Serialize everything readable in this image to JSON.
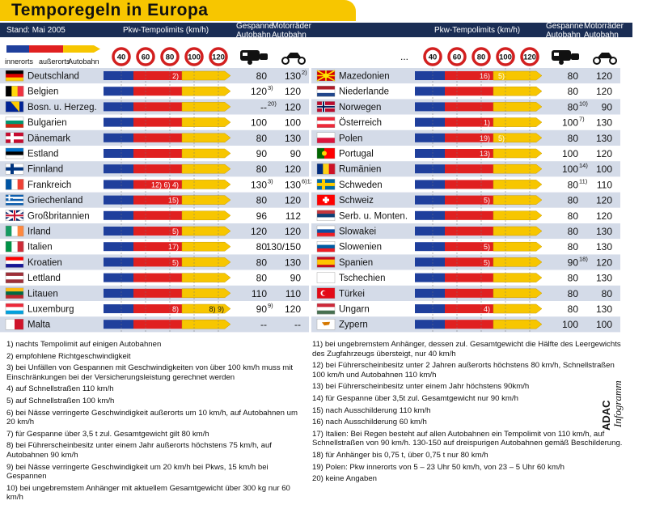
{
  "title": "Temporegeln in Europa",
  "header": {
    "stand": "Stand: Mai 2005",
    "pkw": "Pkw-Tempolimits (km/h)",
    "gespanne_1": "Gespanne",
    "gespanne_2": "Autobahn",
    "motorrad_1": "Motorräder",
    "motorrad_2": "Autobahn"
  },
  "legend": {
    "items": [
      "innerorts",
      "außerorts",
      "Autobahn"
    ],
    "dots": "...",
    "signs": [
      "40",
      "60",
      "80",
      "100",
      "120"
    ],
    "colors": {
      "innerorts": "#1f3f9c",
      "ausserorts": "#e02020",
      "autobahn": "#f7c600"
    }
  },
  "chart_data": {
    "type": "bar",
    "scale_signs": [
      40,
      60,
      80,
      100,
      120
    ],
    "left": [
      {
        "country": "Deutschland",
        "flag": "germany",
        "notes": "2)",
        "gespanne": "80",
        "motorrad": "130",
        "motorrad_note": "2)"
      },
      {
        "country": "Belgien",
        "flag": "belgium",
        "notes": "",
        "gespanne": "120",
        "gespanne_note": "3)",
        "motorrad": "120"
      },
      {
        "country": "Bosn. u. Herzeg.",
        "flag": "bosnia",
        "notes": "",
        "gespanne": "--",
        "gespanne_note": "20)",
        "motorrad": "120"
      },
      {
        "country": "Bulgarien",
        "flag": "bulgaria",
        "notes": "",
        "gespanne": "100",
        "motorrad": "100"
      },
      {
        "country": "Dänemark",
        "flag": "denmark",
        "notes": "",
        "gespanne": "80",
        "motorrad": "130"
      },
      {
        "country": "Estland",
        "flag": "estonia",
        "notes": "",
        "gespanne": "90",
        "motorrad": "90"
      },
      {
        "country": "Finnland",
        "flag": "finland",
        "notes": "",
        "gespanne": "80",
        "motorrad": "120"
      },
      {
        "country": "Frankreich",
        "flag": "france",
        "notes": "12) 6) 4)",
        "gespanne": "130",
        "gespanne_note": "3)",
        "motorrad": "130",
        "motorrad_note": "6)12)"
      },
      {
        "country": "Griechenland",
        "flag": "greece",
        "notes": "15)",
        "gespanne": "80",
        "motorrad": "120"
      },
      {
        "country": "Großbritannien",
        "flag": "uk",
        "notes": "",
        "gespanne": "96",
        "motorrad": "112"
      },
      {
        "country": "Irland",
        "flag": "ireland",
        "notes": "5)",
        "gespanne": "120",
        "motorrad": "120"
      },
      {
        "country": "Italien",
        "flag": "italy",
        "notes": "17)",
        "gespanne": "80",
        "motorrad": "130/150"
      },
      {
        "country": "Kroatien",
        "flag": "croatia",
        "notes": "5)",
        "gespanne": "80",
        "motorrad": "130"
      },
      {
        "country": "Lettland",
        "flag": "latvia",
        "notes": "",
        "gespanne": "80",
        "motorrad": "90"
      },
      {
        "country": "Litauen",
        "flag": "lithuania",
        "notes": "",
        "gespanne": "110",
        "motorrad": "110"
      },
      {
        "country": "Luxemburg",
        "flag": "luxembourg",
        "notes": "8)",
        "notes_end": "8) 9)",
        "gespanne": "90",
        "gespanne_note": "9)",
        "motorrad": "120"
      },
      {
        "country": "Malta",
        "flag": "malta",
        "notes": "",
        "gespanne": "--",
        "motorrad": "--"
      }
    ],
    "right": [
      {
        "country": "Mazedonien",
        "flag": "macedonia",
        "notes": "16)",
        "notes2": "5)",
        "gespanne": "80",
        "motorrad": "120"
      },
      {
        "country": "Niederlande",
        "flag": "netherlands",
        "notes": "",
        "gespanne": "80",
        "motorrad": "120"
      },
      {
        "country": "Norwegen",
        "flag": "norway",
        "notes": "",
        "gespanne": "80",
        "gespanne_note": "10)",
        "motorrad": "90"
      },
      {
        "country": "Österreich",
        "flag": "austria",
        "notes": "1)",
        "gespanne": "100",
        "gespanne_note": "7)",
        "motorrad": "130"
      },
      {
        "country": "Polen",
        "flag": "poland",
        "notes": "19)",
        "notes2": "5)",
        "gespanne": "80",
        "motorrad": "130"
      },
      {
        "country": "Portugal",
        "flag": "portugal",
        "notes": "13)",
        "gespanne": "100",
        "motorrad": "120"
      },
      {
        "country": "Rumänien",
        "flag": "romania",
        "notes": "",
        "gespanne": "100",
        "gespanne_note": "14)",
        "motorrad": "100"
      },
      {
        "country": "Schweden",
        "flag": "sweden",
        "notes": "",
        "gespanne": "80",
        "gespanne_note": "11)",
        "motorrad": "110"
      },
      {
        "country": "Schweiz",
        "flag": "switzerland",
        "notes": "5)",
        "gespanne": "80",
        "motorrad": "120"
      },
      {
        "country": "Serb. u. Monten.",
        "flag": "serbia",
        "notes": "",
        "gespanne": "80",
        "motorrad": "120"
      },
      {
        "country": "Slowakei",
        "flag": "slovakia",
        "notes": "",
        "gespanne": "80",
        "motorrad": "130"
      },
      {
        "country": "Slowenien",
        "flag": "slovenia",
        "notes": "5)",
        "gespanne": "80",
        "motorrad": "130"
      },
      {
        "country": "Spanien",
        "flag": "spain",
        "notes": "5)",
        "gespanne": "90",
        "gespanne_note": "18)",
        "motorrad": "120"
      },
      {
        "country": "Tschechien",
        "flag": "czech",
        "notes": "",
        "gespanne": "80",
        "motorrad": "130"
      },
      {
        "country": "Türkei",
        "flag": "turkey",
        "notes": "",
        "gespanne": "80",
        "motorrad": "80"
      },
      {
        "country": "Ungarn",
        "flag": "hungary",
        "notes": "4)",
        "gespanne": "80",
        "motorrad": "130"
      },
      {
        "country": "Zypern",
        "flag": "cyprus",
        "notes": "",
        "gespanne": "100",
        "motorrad": "100"
      }
    ],
    "flag_colors": {
      "germany": [
        "#000000",
        "#dd0000",
        "#ffce00"
      ],
      "belgium": [
        "#000000",
        "#ffd90c",
        "#ef3340"
      ],
      "bosnia": [
        "#002395",
        "#fecb00"
      ],
      "bulgaria": [
        "#ffffff",
        "#00966e",
        "#d62612"
      ],
      "denmark": [
        "#c60c30",
        "#ffffff"
      ],
      "estonia": [
        "#0072ce",
        "#000000",
        "#ffffff"
      ],
      "finland": [
        "#ffffff",
        "#003580"
      ],
      "france": [
        "#0055a4",
        "#ffffff",
        "#ef4135"
      ],
      "greece": [
        "#0d5eaf",
        "#ffffff"
      ],
      "uk": [
        "#012169",
        "#ffffff",
        "#c8102e"
      ],
      "ireland": [
        "#169b62",
        "#ffffff",
        "#ff883e"
      ],
      "italy": [
        "#009246",
        "#ffffff",
        "#ce2b37"
      ],
      "croatia": [
        "#ff0000",
        "#ffffff",
        "#171796"
      ],
      "latvia": [
        "#9e3039",
        "#ffffff",
        "#9e3039"
      ],
      "lithuania": [
        "#fdb913",
        "#006a44",
        "#c1272d"
      ],
      "luxembourg": [
        "#ed2939",
        "#ffffff",
        "#00a1de"
      ],
      "malta": [
        "#ffffff",
        "#cf142b"
      ],
      "macedonia": [
        "#d20000",
        "#ffe600"
      ],
      "netherlands": [
        "#ae1c28",
        "#ffffff",
        "#21468b"
      ],
      "norway": [
        "#ba0c2f",
        "#ffffff",
        "#00205b"
      ],
      "austria": [
        "#ed2939",
        "#ffffff",
        "#ed2939"
      ],
      "poland": [
        "#ffffff",
        "#dc143c"
      ],
      "portugal": [
        "#006600",
        "#ff0000"
      ],
      "romania": [
        "#002b7f",
        "#fcd116",
        "#ce1126"
      ],
      "sweden": [
        "#006aa7",
        "#fecc00"
      ],
      "switzerland": [
        "#ff0000",
        "#ffffff"
      ],
      "serbia": [
        "#c6363c",
        "#0c4076",
        "#ffffff"
      ],
      "slovakia": [
        "#ffffff",
        "#0b4ea2",
        "#ee1c25"
      ],
      "slovenia": [
        "#ffffff",
        "#005da4",
        "#ed1c24"
      ],
      "spain": [
        "#c60b1e",
        "#ffc400",
        "#c60b1e"
      ],
      "czech": [
        "#ffffff",
        "#d7141a",
        "#11457e"
      ],
      "turkey": [
        "#e30a17",
        "#ffffff"
      ],
      "hungary": [
        "#ce2939",
        "#ffffff",
        "#477050"
      ],
      "cyprus": [
        "#ffffff",
        "#d57800"
      ]
    }
  },
  "footnotes_left": [
    "1) nachts Tempolimit auf einigen Autobahnen",
    "2) empfohlene Richtgeschwindigkeit",
    "3) bei Unfällen von Gespannen mit Geschwindigkeiten von über 100 km/h muss mit Einschränkungen bei der Versicherungsleistung gerechnet werden",
    "4) auf Schnellstraßen 110 km/h",
    "5) auf Schnellstraßen 100 km/h",
    "6) bei Nässe verringerte Geschwindigkeit außerorts um 10 km/h, auf Autobahnen um 20 km/h",
    "7) für Gespanne über 3,5 t zul. Gesamtgewicht gilt 80 km/h",
    "8) bei Führerscheinbesitz unter einem Jahr außerorts höchstens 75 km/h, auf Autobahnen 90 km/h",
    "9) bei Nässe verringerte Geschwindigkeit um 20 km/h bei Pkws, 15 km/h bei Gespannen",
    "10) bei ungebremstem Anhänger mit aktuellem Gesamtgewicht über 300 kg nur 60 km/h"
  ],
  "footnotes_right": [
    "11) bei ungebremstem Anhänger, dessen zul. Gesamtgewicht die Hälfte des Leergewichts des Zugfahrzeugs übersteigt, nur 40 km/h",
    "12) bei Führerscheinbesitz unter 2 Jahren außerorts höchstens 80 km/h, Schnellstraßen 100 km/h und Autobahnen 110 km/h",
    "13) bei Führerscheinbesitz unter einem Jahr höchstens 90km/h",
    "14) für Gespanne über 3,5t zul. Gesamtgewicht nur 90 km/h",
    "15) nach Ausschilderung 110 km/h",
    "16) nach Ausschilderung 60 km/h",
    "17) Italien: Bei Regen besteht auf allen Autobahnen ein Tempolimit von 110 km/h, auf Schnellstraßen von 90 km/h. 130-150 auf dreispurigen Autobahnen gemäß Beschilderung.",
    "18) für Anhänger bis 0,75 t, über 0,75 t nur 80 km/h",
    "19) Polen: Pkw innerorts von 5 – 23 Uhr  50 km/h, von 23 – 5 Uhr  60 km/h",
    "20) keine Angaben"
  ],
  "brand": {
    "adac": "ADAC",
    "infogramm": "Infogramm"
  }
}
